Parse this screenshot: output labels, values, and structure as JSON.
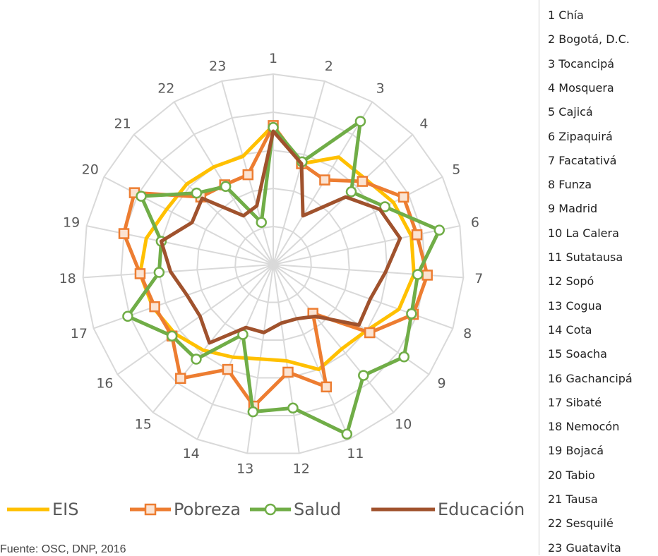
{
  "chart_data": {
    "type": "radar",
    "axis_labels": [
      "1",
      "2",
      "3",
      "4",
      "5",
      "6",
      "7",
      "8",
      "9",
      "10",
      "11",
      "12",
      "13",
      "14",
      "15",
      "16",
      "17",
      "18",
      "19",
      "20",
      "21",
      "22",
      "23"
    ],
    "rmax": 1,
    "rings": 5,
    "grid": true,
    "legend_position": "bottom",
    "series": [
      {
        "name": "EIS",
        "color": "#FFC000",
        "marker": "none",
        "values": [
          0.73,
          0.55,
          0.66,
          0.66,
          0.71,
          0.74,
          0.74,
          0.7,
          0.6,
          0.57,
          0.6,
          0.51,
          0.5,
          0.53,
          0.58,
          0.63,
          0.67,
          0.7,
          0.68,
          0.63,
          0.62,
          0.6,
          0.59
        ]
      },
      {
        "name": "Pobreza",
        "color": "#ED7D31",
        "marker": "square",
        "values": [
          0.73,
          0.55,
          0.52,
          0.64,
          0.77,
          0.77,
          0.81,
          0.78,
          0.62,
          0.33,
          0.7,
          0.57,
          0.75,
          0.6,
          0.77,
          0.65,
          0.66,
          0.7,
          0.8,
          0.82,
          0.52,
          0.49,
          0.49
        ]
      },
      {
        "name": "Salud",
        "color": "#70AD47",
        "marker": "circle",
        "values": [
          0.72,
          0.56,
          0.88,
          0.56,
          0.66,
          0.89,
          0.76,
          0.77,
          0.84,
          0.75,
          0.97,
          0.76,
          0.78,
          0.4,
          0.64,
          0.65,
          0.81,
          0.6,
          0.6,
          0.78,
          0.55,
          0.48,
          0.23
        ]
      },
      {
        "name": "Educación",
        "color": "#A0522D",
        "marker": "none",
        "values": [
          0.7,
          0.55,
          0.3,
          0.52,
          0.63,
          0.68,
          0.59,
          0.54,
          0.55,
          0.35,
          0.31,
          0.31,
          0.36,
          0.36,
          0.53,
          0.47,
          0.48,
          0.54,
          0.6,
          0.48,
          0.51,
          0.3,
          0.32
        ]
      }
    ]
  },
  "legend_list": [
    "1 Chía",
    "2 Bogotá, D.C.",
    "3 Tocancipá",
    "4 Mosquera",
    "5 Cajicá",
    "6 Zipaquirá",
    "7 Facatativá",
    "8 Funza",
    "9 Madrid",
    "10 La Calera",
    "11 Sutatausa",
    "12 Sopó",
    "13 Cogua",
    "14 Cota",
    "15 Soacha",
    "16 Gachancipá",
    "17 Sibaté",
    "18 Nemocón",
    "19 Bojacá",
    "20 Tabio",
    "21 Tausa",
    "22 Sesquilé",
    "23 Guatavita"
  ],
  "source": "Fuente: OSC, DNP, 2016"
}
